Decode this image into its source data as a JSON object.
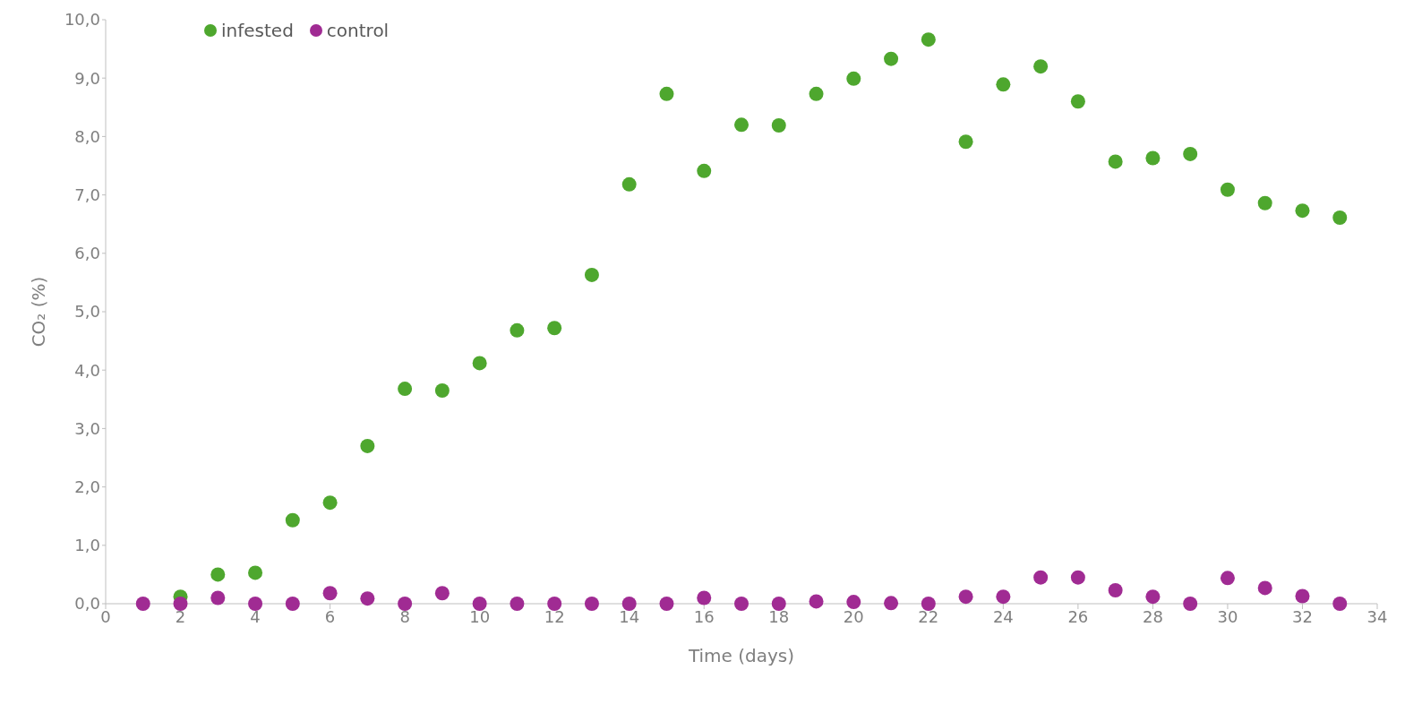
{
  "chart_data": {
    "type": "scatter",
    "xlabel": "Time (days)",
    "ylabel": "CO₂ (%)",
    "x": [
      1,
      2,
      3,
      4,
      5,
      6,
      7,
      8,
      9,
      10,
      11,
      12,
      13,
      14,
      15,
      16,
      17,
      18,
      19,
      20,
      21,
      22,
      23,
      24,
      25,
      26,
      27,
      28,
      29,
      30,
      31,
      32,
      33
    ],
    "series": [
      {
        "name": "infested",
        "color": "#4ea72e",
        "values": [
          null,
          0.12,
          0.5,
          0.53,
          1.43,
          1.73,
          2.7,
          3.68,
          3.65,
          4.12,
          4.68,
          4.72,
          5.63,
          7.18,
          8.73,
          7.41,
          8.2,
          8.19,
          8.73,
          8.99,
          9.33,
          9.66,
          7.91,
          8.89,
          9.2,
          8.6,
          7.57,
          7.63,
          7.7,
          7.09,
          6.86,
          6.73,
          6.61
        ]
      },
      {
        "name": "control",
        "color": "#a02b93",
        "values": [
          0,
          0,
          0.1,
          0,
          0,
          0.18,
          0.09,
          0,
          0.18,
          0,
          0,
          0,
          0,
          0,
          0,
          0.1,
          0,
          0,
          0.04,
          0.03,
          0.01,
          0,
          0.12,
          0.12,
          0.45,
          0.45,
          0.23,
          0.12,
          0,
          0.44,
          0.27,
          0.13,
          0
        ]
      }
    ],
    "xlim": [
      0,
      34
    ],
    "xticks": [
      0,
      2,
      4,
      6,
      8,
      10,
      12,
      14,
      16,
      18,
      20,
      22,
      24,
      26,
      28,
      30,
      32,
      34
    ],
    "ylim": [
      0,
      10
    ],
    "yticks": [
      {
        "value": 0,
        "label": "0,0"
      },
      {
        "value": 1,
        "label": "1,0"
      },
      {
        "value": 2,
        "label": "2,0"
      },
      {
        "value": 3,
        "label": "3,0"
      },
      {
        "value": 4,
        "label": "4,0"
      },
      {
        "value": 5,
        "label": "5,0"
      },
      {
        "value": 6,
        "label": "6,0"
      },
      {
        "value": 7,
        "label": "7,0"
      },
      {
        "value": 8,
        "label": "8,0"
      },
      {
        "value": 9,
        "label": "9,0"
      },
      {
        "value": 10,
        "label": "10,0"
      }
    ],
    "grid": false,
    "legend": "top left",
    "marker": "circle"
  }
}
